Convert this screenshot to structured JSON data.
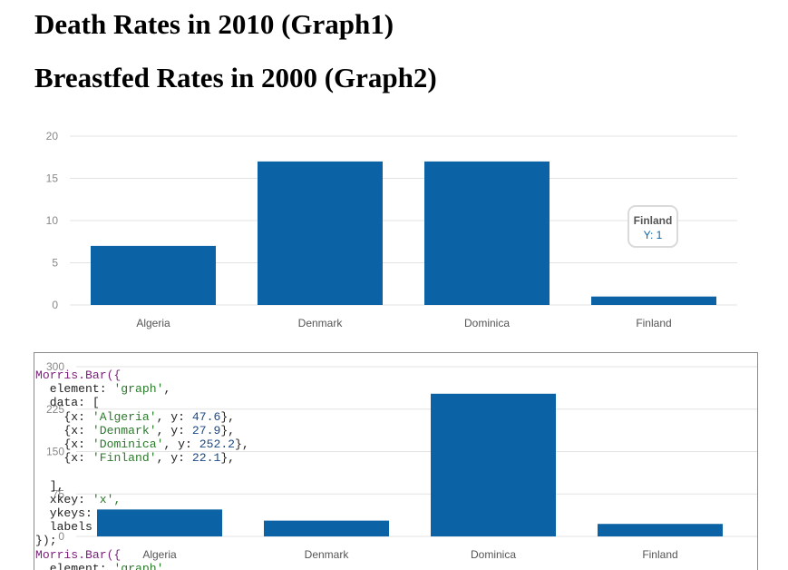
{
  "page": {
    "title1": "Death Rates in 2010 (Graph1)",
    "title2": "Breastfed Rates in 2000 (Graph2)"
  },
  "chart_data": [
    {
      "type": "bar",
      "categories": [
        "Algeria",
        "Denmark",
        "Dominica",
        "Finland"
      ],
      "values": [
        7,
        17,
        17,
        1
      ],
      "ylim": [
        0,
        20
      ],
      "yticks": [
        "20",
        "15",
        "10",
        "5",
        "0"
      ],
      "bar_color": "#0b62a4",
      "grid": true,
      "hover": {
        "label": "Finland",
        "value_text": "Y: 1"
      }
    },
    {
      "type": "bar",
      "categories": [
        "Algeria",
        "Denmark",
        "Dominica",
        "Finland"
      ],
      "values": [
        47.6,
        27.9,
        252.2,
        22.1
      ],
      "ylim": [
        0,
        300
      ],
      "yticks": [
        "300",
        "225",
        "150",
        "75",
        "0"
      ],
      "bar_color": "#0b62a4",
      "grid": true
    }
  ],
  "code_overlay": {
    "line1": "Morris.Bar({",
    "line2_key": "  element: ",
    "line2_val": "'graph'",
    "line3": "  data: [",
    "data_rows": [
      {
        "x": "'Algeria'",
        "y": "47.6"
      },
      {
        "x": "'Denmark'",
        "y": "27.9"
      },
      {
        "x": "'Dominica'",
        "y": "252.2"
      },
      {
        "x": "'Finland'",
        "y": "22.1"
      }
    ],
    "line_close_array": "  ],",
    "line_xkey_key": "  xkey: ",
    "line_xkey_val": "'x',",
    "line_ykeys": "  ykeys: ",
    "line_labels": "  labels",
    "line_close": "});",
    "line_repeat1": "Morris.Bar({",
    "line_repeat2_key": "  element: ",
    "line_repeat2_val": "'graph',"
  }
}
